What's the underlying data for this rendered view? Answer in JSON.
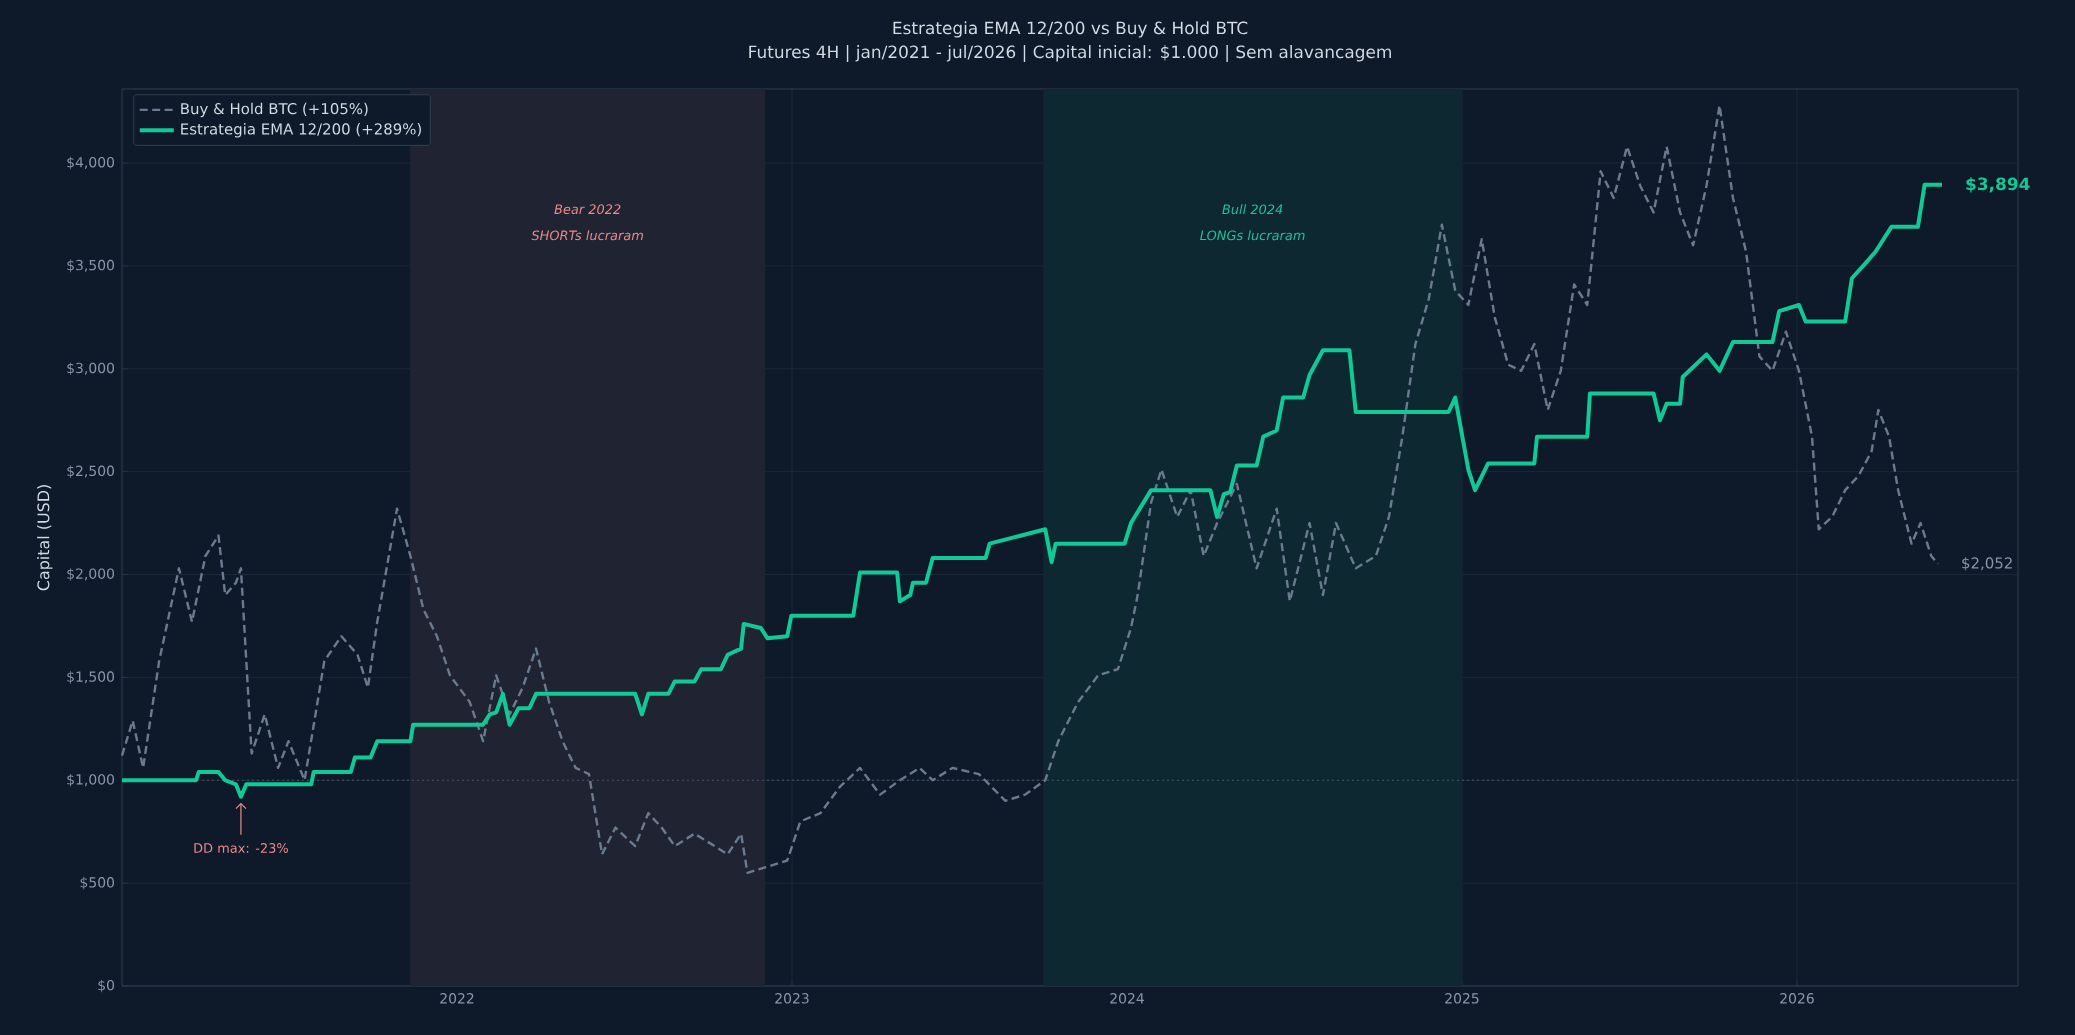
{
  "chart_data": {
    "type": "line",
    "title": "Estrategia EMA 12/200 vs Buy & Hold BTC",
    "subtitle": "Futures 4H  |  jan/2021 - jul/2026  |  Capital inicial: $1.000  |  Sem alavancagem",
    "ylabel": "Capital (USD)",
    "xlim": [
      2021.0,
      2026.66
    ],
    "xticks": [
      2022,
      2023,
      2024,
      2025,
      2026
    ],
    "ylim": [
      0,
      4360
    ],
    "yticks": [
      {
        "value": 0,
        "label": "$0"
      },
      {
        "value": 500,
        "label": "$500"
      },
      {
        "value": 1000,
        "label": "$1,000"
      },
      {
        "value": 1500,
        "label": "$1,500"
      },
      {
        "value": 2000,
        "label": "$2,000"
      },
      {
        "value": 2500,
        "label": "$2,500"
      },
      {
        "value": 3000,
        "label": "$3,000"
      },
      {
        "value": 3500,
        "label": "$3,500"
      },
      {
        "value": 4000,
        "label": "$4,000"
      }
    ],
    "grid": true,
    "legend": "top left",
    "series": [
      {
        "name": "Buy & Hold BTC (+105%)",
        "color": "#6b7a8f",
        "line_style": "dashed",
        "x": [
          2021.0,
          2021.032,
          2021.063,
          2021.111,
          2021.17,
          2021.209,
          2021.249,
          2021.288,
          2021.308,
          2021.34,
          2021.355,
          2021.387,
          2021.426,
          2021.466,
          2021.497,
          2021.545,
          2021.604,
          2021.655,
          2021.703,
          2021.734,
          2021.762,
          2021.821,
          2021.861,
          2021.9,
          2021.94,
          2021.979,
          2022.038,
          2022.078,
          2022.117,
          2022.157,
          2022.196,
          2022.236,
          2022.275,
          2022.315,
          2022.354,
          2022.394,
          2022.433,
          2022.473,
          2022.532,
          2022.571,
          2022.611,
          2022.65,
          2022.709,
          2022.769,
          2022.808,
          2022.848,
          2022.867,
          2022.927,
          2022.986,
          2023.025,
          2023.085,
          2023.144,
          2023.203,
          2023.263,
          2023.322,
          2023.381,
          2023.42,
          2023.479,
          2023.558,
          2023.637,
          2023.696,
          2023.756,
          2023.795,
          2023.854,
          2023.914,
          2023.973,
          2024.012,
          2024.032,
          2024.072,
          2024.103,
          2024.15,
          2024.19,
          2024.229,
          2024.269,
          2024.328,
          2024.387,
          2024.447,
          2024.486,
          2024.545,
          2024.585,
          2024.624,
          2024.683,
          2024.743,
          2024.782,
          2024.822,
          2024.861,
          2024.901,
          2024.94,
          2024.98,
          2025.019,
          2025.059,
          2025.098,
          2025.138,
          2025.177,
          2025.216,
          2025.256,
          2025.295,
          2025.335,
          2025.374,
          2025.414,
          2025.453,
          2025.493,
          2025.532,
          2025.572,
          2025.611,
          2025.651,
          2025.69,
          2025.73,
          2025.769,
          2025.809,
          2025.848,
          2025.888,
          2025.927,
          2025.967,
          2026.006,
          2026.045,
          2026.065,
          2026.105,
          2026.144,
          2026.184,
          2026.223,
          2026.243,
          2026.275,
          2026.302,
          2026.342,
          2026.369,
          2026.401,
          2026.421
        ],
        "values": [
          1120,
          1290,
          1060,
          1580,
          2030,
          1770,
          2090,
          2190,
          1900,
          1960,
          2030,
          1130,
          1320,
          1060,
          1190,
          1000,
          1580,
          1700,
          1610,
          1450,
          1770,
          2320,
          2090,
          1830,
          1700,
          1510,
          1380,
          1190,
          1510,
          1320,
          1450,
          1640,
          1380,
          1190,
          1060,
          1030,
          640,
          770,
          680,
          840,
          770,
          680,
          740,
          680,
          640,
          740,
          550,
          580,
          610,
          800,
          840,
          970,
          1060,
          930,
          1000,
          1060,
          1000,
          1060,
          1030,
          900,
          930,
          1000,
          1190,
          1380,
          1510,
          1540,
          1740,
          1900,
          2350,
          2510,
          2280,
          2410,
          2090,
          2250,
          2440,
          2030,
          2320,
          1870,
          2250,
          1900,
          2250,
          2030,
          2090,
          2280,
          2670,
          3120,
          3340,
          3700,
          3380,
          3310,
          3630,
          3250,
          3020,
          2990,
          3120,
          2800,
          2990,
          3410,
          3310,
          3960,
          3830,
          4080,
          3890,
          3760,
          4080,
          3760,
          3600,
          3890,
          4280,
          3830,
          3570,
          3060,
          2990,
          3180,
          2990,
          2670,
          2220,
          2280,
          2410,
          2480,
          2600,
          2800,
          2670,
          2410,
          2150,
          2250,
          2090,
          2052
        ]
      },
      {
        "name": "Estrategia EMA 12/200 (+289%)",
        "color": "#10c997",
        "line_style": "solid",
        "x": [
          2021.0,
          2021.221,
          2021.229,
          2021.288,
          2021.308,
          2021.34,
          2021.355,
          2021.371,
          2021.565,
          2021.572,
          2021.683,
          2021.695,
          2021.742,
          2021.762,
          2021.861,
          2021.869,
          2022.078,
          2022.098,
          2022.117,
          2022.137,
          2022.157,
          2022.184,
          2022.216,
          2022.236,
          2022.532,
          2022.552,
          2022.571,
          2022.631,
          2022.65,
          2022.709,
          2022.729,
          2022.788,
          2022.808,
          2022.848,
          2022.856,
          2022.907,
          2022.927,
          2022.986,
          2022.998,
          2023.183,
          2023.203,
          2023.314,
          2023.322,
          2023.353,
          2023.361,
          2023.4,
          2023.42,
          2023.578,
          2023.59,
          2023.756,
          2023.775,
          2023.787,
          2023.993,
          2024.012,
          2024.072,
          2024.249,
          2024.269,
          2024.289,
          2024.308,
          2024.328,
          2024.387,
          2024.407,
          2024.447,
          2024.466,
          2024.526,
          2024.545,
          2024.585,
          2024.664,
          2024.683,
          2024.96,
          2024.98,
          2025.019,
          2025.039,
          2025.078,
          2025.216,
          2025.224,
          2025.374,
          2025.382,
          2025.572,
          2025.591,
          2025.611,
          2025.651,
          2025.659,
          2025.73,
          2025.769,
          2025.809,
          2025.927,
          2025.947,
          2026.006,
          2026.026,
          2026.144,
          2026.164,
          2026.203,
          2026.235,
          2026.282,
          2026.361,
          2026.381,
          2026.433
        ],
        "values": [
          1000,
          1000,
          1040,
          1040,
          1000,
          980,
          920,
          980,
          980,
          1040,
          1040,
          1110,
          1110,
          1190,
          1190,
          1270,
          1270,
          1320,
          1330,
          1420,
          1270,
          1350,
          1350,
          1420,
          1420,
          1320,
          1420,
          1420,
          1480,
          1480,
          1540,
          1540,
          1610,
          1640,
          1760,
          1740,
          1690,
          1700,
          1800,
          1800,
          2010,
          2010,
          1870,
          1900,
          1960,
          1960,
          2080,
          2080,
          2150,
          2220,
          2060,
          2150,
          2150,
          2250,
          2410,
          2410,
          2280,
          2390,
          2400,
          2530,
          2530,
          2670,
          2700,
          2860,
          2860,
          2970,
          3090,
          3090,
          2790,
          2790,
          2860,
          2510,
          2410,
          2540,
          2540,
          2670,
          2670,
          2880,
          2880,
          2750,
          2830,
          2830,
          2960,
          3070,
          2990,
          3130,
          3130,
          3280,
          3310,
          3230,
          3230,
          3440,
          3510,
          3570,
          3690,
          3690,
          3894,
          3894
        ]
      }
    ],
    "ref_lines": [
      {
        "axis": "y",
        "value": 1000,
        "line_style": "dotted",
        "color": "#4a5666"
      }
    ],
    "bands": [
      {
        "axis": "x",
        "from": 2021.86,
        "to": 2022.92,
        "label": "Bear 2022",
        "color": "#202331"
      },
      {
        "axis": "x",
        "from": 2023.75,
        "to": 2025.0,
        "label": "Bull 2024",
        "color": "#0e2832"
      }
    ],
    "annotations": [
      "SHORTs lucraram",
      "LONGs lucraram",
      {
        "text": "DD max: -23%",
        "x": 2021.355,
        "y": 920
      },
      {
        "text": "$3,894",
        "x": 2026.433,
        "y": 3894
      },
      {
        "text": "$2,052",
        "x": 2026.421,
        "y": 2052
      }
    ]
  }
}
